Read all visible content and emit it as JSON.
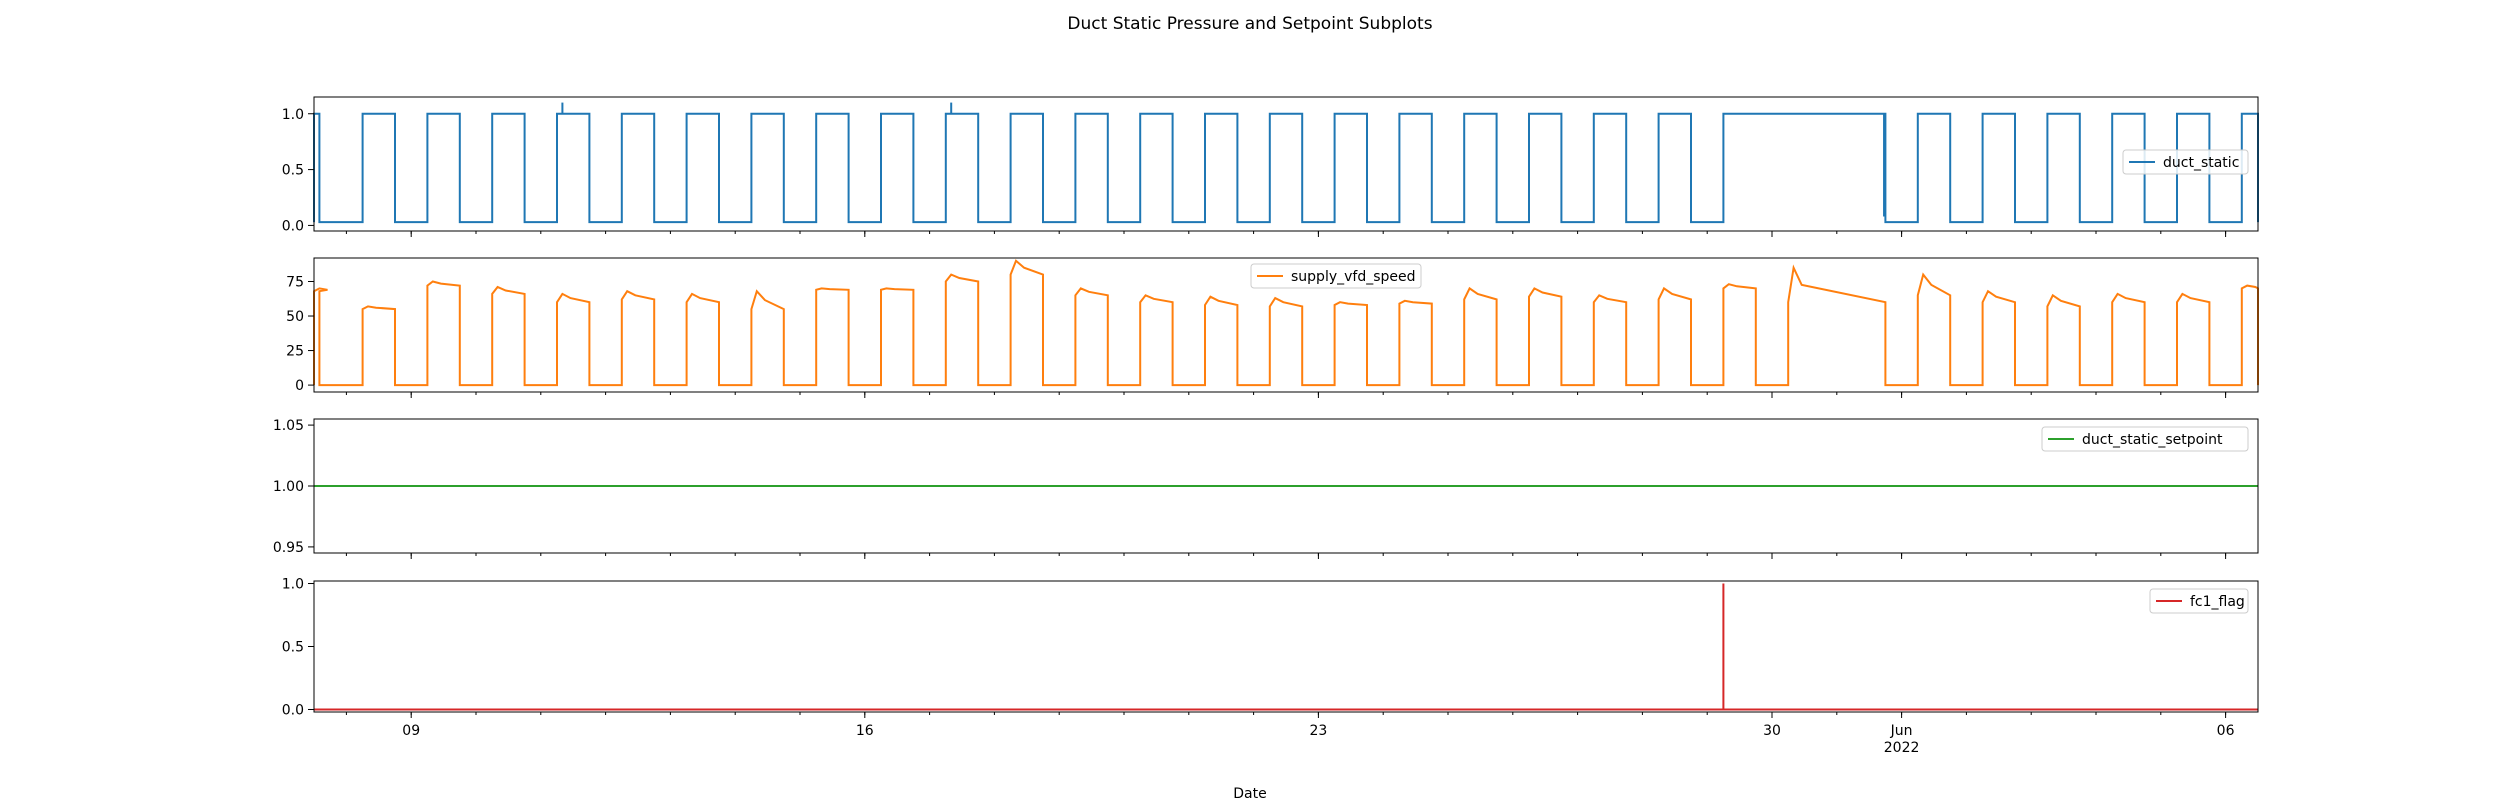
{
  "figure": {
    "title": "Duct Static Pressure and Setpoint Subplots",
    "xlabel": "Date"
  },
  "x_axis": {
    "start": "2022-05-07T12:00",
    "end": "2022-06-06T12:00",
    "major_ticks": [
      {
        "date": "2022-05-09",
        "label": "09",
        "sublabel": ""
      },
      {
        "date": "2022-05-16",
        "label": "16",
        "sublabel": ""
      },
      {
        "date": "2022-05-23",
        "label": "23",
        "sublabel": ""
      },
      {
        "date": "2022-05-30",
        "label": "30",
        "sublabel": ""
      },
      {
        "date": "2022-06-01",
        "label": "Jun",
        "sublabel": "2022"
      },
      {
        "date": "2022-06-06",
        "label": "06",
        "sublabel": ""
      }
    ],
    "minor_ticks": "daily"
  },
  "chart_data": [
    {
      "type": "line",
      "series": [
        {
          "name": "duct_static",
          "color": "#1f77b4",
          "on_level": 1.0,
          "off_level": 0.03,
          "on_intervals": [
            [
              "2022-05-07T12:00",
              "2022-05-07T14:00"
            ],
            [
              "2022-05-08T06:00",
              "2022-05-08T18:00"
            ],
            [
              "2022-05-09T06:00",
              "2022-05-09T18:00"
            ],
            [
              "2022-05-10T06:00",
              "2022-05-10T18:00"
            ],
            [
              "2022-05-11T06:00",
              "2022-05-11T18:00"
            ],
            [
              "2022-05-12T06:00",
              "2022-05-12T18:00"
            ],
            [
              "2022-05-13T06:00",
              "2022-05-13T18:00"
            ],
            [
              "2022-05-14T06:00",
              "2022-05-14T18:00"
            ],
            [
              "2022-05-15T06:00",
              "2022-05-15T18:00"
            ],
            [
              "2022-05-16T06:00",
              "2022-05-16T18:00"
            ],
            [
              "2022-05-17T06:00",
              "2022-05-17T18:00"
            ],
            [
              "2022-05-18T06:00",
              "2022-05-18T18:00"
            ],
            [
              "2022-05-19T06:00",
              "2022-05-19T18:00"
            ],
            [
              "2022-05-20T06:00",
              "2022-05-20T18:00"
            ],
            [
              "2022-05-21T06:00",
              "2022-05-21T18:00"
            ],
            [
              "2022-05-22T06:00",
              "2022-05-22T18:00"
            ],
            [
              "2022-05-23T06:00",
              "2022-05-23T18:00"
            ],
            [
              "2022-05-24T06:00",
              "2022-05-24T18:00"
            ],
            [
              "2022-05-25T06:00",
              "2022-05-25T18:00"
            ],
            [
              "2022-05-26T06:00",
              "2022-05-26T18:00"
            ],
            [
              "2022-05-27T06:00",
              "2022-05-27T18:00"
            ],
            [
              "2022-05-28T06:00",
              "2022-05-28T18:00"
            ],
            [
              "2022-05-29T06:00",
              "2022-05-31T18:00"
            ],
            [
              "2022-06-01T06:00",
              "2022-06-01T18:00"
            ],
            [
              "2022-06-02T06:00",
              "2022-06-02T18:00"
            ],
            [
              "2022-06-03T06:00",
              "2022-06-03T18:00"
            ],
            [
              "2022-06-04T06:00",
              "2022-06-04T18:00"
            ],
            [
              "2022-06-05T06:00",
              "2022-06-05T18:00"
            ],
            [
              "2022-06-06T06:00",
              "2022-06-06T12:00"
            ]
          ],
          "spikes": [
            {
              "x": "2022-05-11T08:00",
              "y": 1.1
            },
            {
              "x": "2022-05-17T08:00",
              "y": 1.1
            },
            {
              "x": "2022-05-31T17:30",
              "y": 0.08
            }
          ]
        }
      ],
      "ylim": [
        -0.05,
        1.15
      ],
      "yticks": [
        {
          "value": 0.0,
          "label": "0.0"
        },
        {
          "value": 0.5,
          "label": "0.5"
        },
        {
          "value": 1.0,
          "label": "1.0"
        }
      ],
      "legend": "center-right"
    },
    {
      "type": "line",
      "series": [
        {
          "name": "supply_vfd_speed",
          "color": "#ff7f0e",
          "off_level": 0.0,
          "on_periods": [
            {
              "start": "2022-05-07T12:00",
              "end": "2022-05-07T14:00",
              "peak": 70,
              "level": 68
            },
            {
              "start": "2022-05-08T06:00",
              "end": "2022-05-08T18:00",
              "peak": 57,
              "level": 55
            },
            {
              "start": "2022-05-09T06:00",
              "end": "2022-05-09T18:00",
              "peak": 75,
              "level": 72
            },
            {
              "start": "2022-05-10T06:00",
              "end": "2022-05-10T18:00",
              "peak": 71,
              "level": 66
            },
            {
              "start": "2022-05-11T06:00",
              "end": "2022-05-11T18:00",
              "peak": 66,
              "level": 60
            },
            {
              "start": "2022-05-12T06:00",
              "end": "2022-05-12T18:00",
              "peak": 68,
              "level": 62
            },
            {
              "start": "2022-05-13T06:00",
              "end": "2022-05-13T18:00",
              "peak": 66,
              "level": 60
            },
            {
              "start": "2022-05-14T06:00",
              "end": "2022-05-14T18:00",
              "peak": 68,
              "level": 55
            },
            {
              "start": "2022-05-15T06:00",
              "end": "2022-05-15T18:00",
              "peak": 70,
              "level": 69
            },
            {
              "start": "2022-05-16T06:00",
              "end": "2022-05-16T18:00",
              "peak": 70,
              "level": 69
            },
            {
              "start": "2022-05-17T06:00",
              "end": "2022-05-17T18:00",
              "peak": 80,
              "level": 75
            },
            {
              "start": "2022-05-18T06:00",
              "end": "2022-05-18T18:00",
              "peak": 90,
              "level": 80
            },
            {
              "start": "2022-05-19T06:00",
              "end": "2022-05-19T18:00",
              "peak": 70,
              "level": 65
            },
            {
              "start": "2022-05-20T06:00",
              "end": "2022-05-20T18:00",
              "peak": 65,
              "level": 60
            },
            {
              "start": "2022-05-21T06:00",
              "end": "2022-05-21T18:00",
              "peak": 64,
              "level": 58
            },
            {
              "start": "2022-05-22T06:00",
              "end": "2022-05-22T18:00",
              "peak": 63,
              "level": 57
            },
            {
              "start": "2022-05-23T06:00",
              "end": "2022-05-23T18:00",
              "peak": 60,
              "level": 58
            },
            {
              "start": "2022-05-24T06:00",
              "end": "2022-05-24T18:00",
              "peak": 61,
              "level": 59
            },
            {
              "start": "2022-05-25T06:00",
              "end": "2022-05-25T18:00",
              "peak": 70,
              "level": 62
            },
            {
              "start": "2022-05-26T06:00",
              "end": "2022-05-26T18:00",
              "peak": 70,
              "level": 64
            },
            {
              "start": "2022-05-27T06:00",
              "end": "2022-05-27T18:00",
              "peak": 65,
              "level": 60
            },
            {
              "start": "2022-05-28T06:00",
              "end": "2022-05-28T18:00",
              "peak": 70,
              "level": 62
            },
            {
              "start": "2022-05-29T06:00",
              "end": "2022-05-29T18:00",
              "peak": 73,
              "level": 70
            },
            {
              "start": "2022-05-30T06:00",
              "end": "2022-05-31T18:00",
              "peak": 85,
              "level": 60
            },
            {
              "start": "2022-06-01T06:00",
              "end": "2022-06-01T18:00",
              "peak": 80,
              "level": 65
            },
            {
              "start": "2022-06-02T06:00",
              "end": "2022-06-02T18:00",
              "peak": 68,
              "level": 60
            },
            {
              "start": "2022-06-03T06:00",
              "end": "2022-06-03T18:00",
              "peak": 65,
              "level": 57
            },
            {
              "start": "2022-06-04T06:00",
              "end": "2022-06-04T18:00",
              "peak": 66,
              "level": 60
            },
            {
              "start": "2022-06-05T06:00",
              "end": "2022-06-05T18:00",
              "peak": 66,
              "level": 60
            },
            {
              "start": "2022-06-06T06:00",
              "end": "2022-06-06T12:00",
              "peak": 72,
              "level": 70
            }
          ]
        }
      ],
      "ylim": [
        -5,
        92
      ],
      "yticks": [
        {
          "value": 0,
          "label": "0"
        },
        {
          "value": 25,
          "label": "25"
        },
        {
          "value": 50,
          "label": "50"
        },
        {
          "value": 75,
          "label": "75"
        }
      ],
      "legend": "top-center"
    },
    {
      "type": "line",
      "series": [
        {
          "name": "duct_static_setpoint",
          "color": "#2ca02c",
          "constant": 1.0
        }
      ],
      "ylim": [
        0.945,
        1.055
      ],
      "yticks": [
        {
          "value": 0.95,
          "label": "0.95"
        },
        {
          "value": 1.0,
          "label": "1.00"
        },
        {
          "value": 1.05,
          "label": "1.05"
        }
      ],
      "legend": "top-right"
    },
    {
      "type": "line",
      "series": [
        {
          "name": "fc1_flag",
          "color": "#d62728",
          "constant": 0.0,
          "spikes": [
            {
              "x": "2022-05-29T06:00",
              "y": 1.0
            }
          ]
        }
      ],
      "ylim": [
        -0.02,
        1.02
      ],
      "yticks": [
        {
          "value": 0.0,
          "label": "0.0"
        },
        {
          "value": 0.5,
          "label": "0.5"
        },
        {
          "value": 1.0,
          "label": "1.0"
        }
      ],
      "legend": "top-right"
    }
  ]
}
